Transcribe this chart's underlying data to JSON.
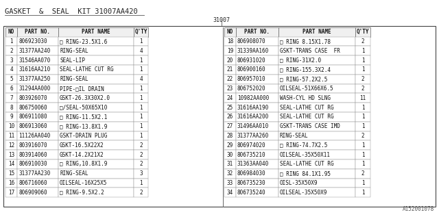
{
  "title": "GASKET  &  SEAL  KIT 31007AA420",
  "subtitle": "31007",
  "watermark": "A152001078",
  "background": "#ffffff",
  "left_table": {
    "headers": [
      "NO",
      "PART NO.",
      "PART NAME",
      "Q'TY"
    ],
    "rows": [
      [
        "1",
        "806923030",
        "□ RING-23.5X1.6",
        "1"
      ],
      [
        "2",
        "31377AA240",
        "RING-SEAL",
        "4"
      ],
      [
        "3",
        "31546AA070",
        "SEAL-LIP",
        "1"
      ],
      [
        "4",
        "31616AA210",
        "SEAL-LATHE CUT RG",
        "1"
      ],
      [
        "5",
        "31377AA250",
        "RING-SEAL",
        "4"
      ],
      [
        "6",
        "31294AA000",
        "PIPE-□IL DRAIN",
        "1"
      ],
      [
        "7",
        "803926070",
        "GSKT-26.3X30X2.0",
        "1"
      ],
      [
        "8",
        "806750060",
        "□/SEAL-50X65X10",
        "1"
      ],
      [
        "9",
        "806911080",
        "□ RING-11.5X2.1",
        "1"
      ],
      [
        "10",
        "806913060",
        "□ RING-13.8X1.9",
        "1"
      ],
      [
        "11",
        "11126AA040",
        "GSKT-DRAIN PLUG",
        "1"
      ],
      [
        "12",
        "803916070",
        "GSKT-16.5X22X2",
        "2"
      ],
      [
        "13",
        "803914060",
        "GSKT-14.2X21X2",
        "2"
      ],
      [
        "14",
        "806910030",
        "□ RING,10.8X1.9",
        "2"
      ],
      [
        "15",
        "31377AA230",
        "RING-SEAL",
        "3"
      ],
      [
        "16",
        "806716060",
        "OILSEAL-16X25X5",
        "1"
      ],
      [
        "17",
        "806909060",
        "□ RING-9.5X2.2",
        "2"
      ]
    ]
  },
  "right_table": {
    "headers": [
      "NO",
      "PART NO.",
      "PART NAME",
      "Q'TY"
    ],
    "rows": [
      [
        "18",
        "806908070",
        "□ RING 8.15X1.78",
        "2"
      ],
      [
        "19",
        "31339AA160",
        "GSKT-TRANS CASE  FR",
        "1"
      ],
      [
        "20",
        "806931020",
        "□ RING-31X2.0",
        "1"
      ],
      [
        "21",
        "806900160",
        "□ RING-155.3X2.4",
        "1"
      ],
      [
        "22",
        "806957010",
        "□ RING-57.2X2.5",
        "2"
      ],
      [
        "23",
        "806752020",
        "OILSEAL-51X66X6.5",
        "2"
      ],
      [
        "24",
        "10982AA000",
        "WASH-CYL HD SLNG",
        "11"
      ],
      [
        "25",
        "31616AA190",
        "SEAL-LATHE CUT RG",
        "1"
      ],
      [
        "26",
        "31616AA200",
        "SEAL-LATHE CUT RG",
        "1"
      ],
      [
        "27",
        "31496AA010",
        "GSKT-TRANS CASE IMD",
        "1"
      ],
      [
        "28",
        "31377AA260",
        "RING-SEAL",
        "2"
      ],
      [
        "29",
        "806974020",
        "□ RING-74.7X2.5",
        "1"
      ],
      [
        "30",
        "806735210",
        "OILSEAL-35X50X11",
        "1"
      ],
      [
        "31",
        "31363AA040",
        "SEAL-LATHE CUT RG",
        "1"
      ],
      [
        "32",
        "806984030",
        "□ RING 84.1X1.95",
        "2"
      ],
      [
        "33",
        "806735230",
        "OISL-35X50X9",
        "1"
      ],
      [
        "34",
        "806735240",
        "OILSEAL-35X50X9",
        "1"
      ]
    ]
  }
}
